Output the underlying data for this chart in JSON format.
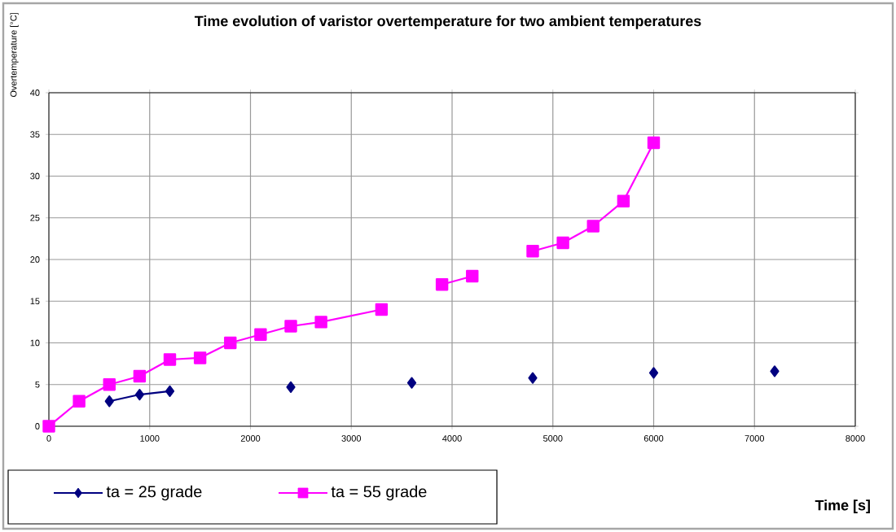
{
  "chart_data": {
    "type": "line",
    "title": "Time evolution of varistor overtemperature for two ambient temperatures",
    "xlabel": "Time [s]",
    "ylabel": "Overtemperature [°C]",
    "xlim": [
      0,
      8000
    ],
    "xticks": [
      0,
      1000,
      2000,
      3000,
      4000,
      5000,
      6000,
      7000,
      8000
    ],
    "ylim": [
      0,
      40
    ],
    "yticks": [
      0,
      5,
      10,
      15,
      20,
      25,
      30,
      35,
      40
    ],
    "grid": true,
    "legend": "bottom left",
    "line_style": "solid",
    "series": [
      {
        "name": "ta = 25 grade",
        "color": "#000080",
        "marker": "diamond",
        "x": [
          600,
          900,
          1200,
          1800,
          2400,
          3000,
          3600,
          4200,
          4800,
          5400,
          6000,
          6600,
          7200
        ],
        "values": [
          3.0,
          3.8,
          4.2,
          null,
          4.7,
          null,
          5.2,
          null,
          5.8,
          null,
          6.4,
          null,
          6.6
        ]
      },
      {
        "name": "ta = 55 grade",
        "color": "#ff00ff",
        "marker": "square",
        "x": [
          0,
          300,
          600,
          900,
          1200,
          1500,
          1800,
          2100,
          2400,
          2700,
          3300,
          3600,
          3900,
          4200,
          4500,
          4800,
          5100,
          5400,
          5700,
          6000
        ],
        "values": [
          0,
          3,
          5,
          6,
          8,
          8.2,
          10,
          11,
          12,
          12.5,
          14,
          null,
          17,
          18,
          null,
          21,
          22,
          24,
          27,
          34
        ]
      }
    ]
  }
}
